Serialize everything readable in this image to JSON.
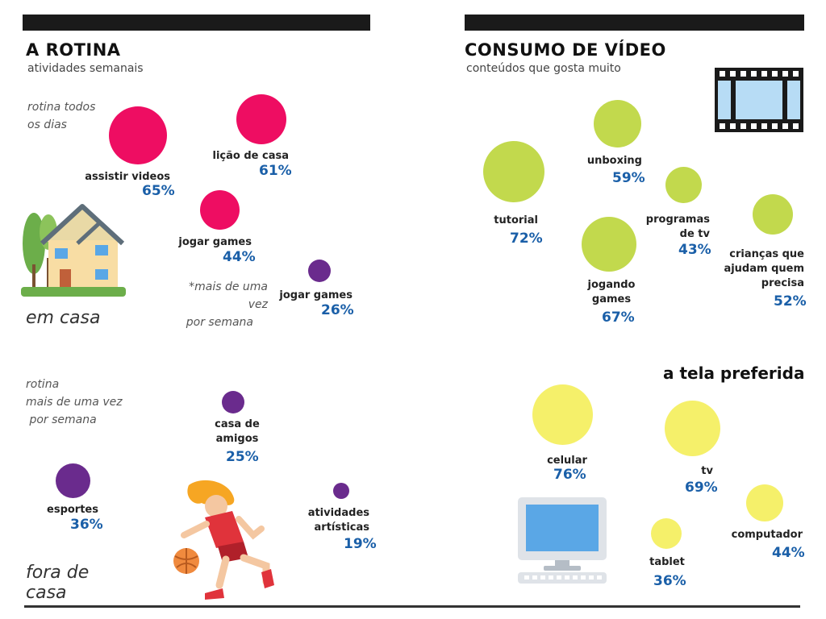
{
  "left": {
    "title": "A ROTINA",
    "subtitle": "atividades semanais",
    "note_daily": [
      "rotina todos",
      "os dias"
    ],
    "note_weekly_star": [
      "*mais de uma vez",
      "por semana"
    ],
    "home_caption": "em casa",
    "note_routine": [
      "rotina",
      "mais de uma vez",
      " por semana"
    ],
    "outside_caption": [
      "fora de",
      "casa"
    ],
    "home_items": [
      {
        "label": "assistir videos",
        "value": "65%"
      },
      {
        "label": "lição de casa",
        "value": "61%"
      },
      {
        "label": "jogar games",
        "value": "44%"
      },
      {
        "label": "jogar games",
        "value": "26%"
      }
    ],
    "outside_items": [
      {
        "label": [
          "casa de",
          "amigos"
        ],
        "value": "25%"
      },
      {
        "label": [
          "esportes"
        ],
        "value": "36%"
      },
      {
        "label": [
          "atividades",
          "artísticas"
        ],
        "value": "19%"
      }
    ]
  },
  "right": {
    "title": "CONSUMO DE VÍDEO",
    "subtitle": "conteúdos que gosta muito",
    "video_items": [
      {
        "label": [
          "tutorial"
        ],
        "value": "72%"
      },
      {
        "label": [
          "unboxing"
        ],
        "value": "59%"
      },
      {
        "label": [
          "jogando",
          "games"
        ],
        "value": "67%"
      },
      {
        "label": [
          "programas",
          "de tv"
        ],
        "value": "43%"
      },
      {
        "label": [
          "crianças que",
          "ajudam quem",
          "precisa"
        ],
        "value": "52%"
      }
    ],
    "screen_title": "a tela preferida",
    "screen_items": [
      {
        "label": "celular",
        "value": "76%"
      },
      {
        "label": "tv",
        "value": "69%"
      },
      {
        "label": "computador",
        "value": "44%"
      },
      {
        "label": "tablet",
        "value": "36%"
      }
    ]
  },
  "colors": {
    "pink": "#ee0d62",
    "purple": "#6a2b8d",
    "green": "#c2d94d",
    "yellow": "#f5f06a",
    "percent_blue": "#1a5fa8"
  },
  "icons": [
    "house-icon",
    "film-strip-icon",
    "basketball-player-icon",
    "computer-monitor-icon"
  ]
}
